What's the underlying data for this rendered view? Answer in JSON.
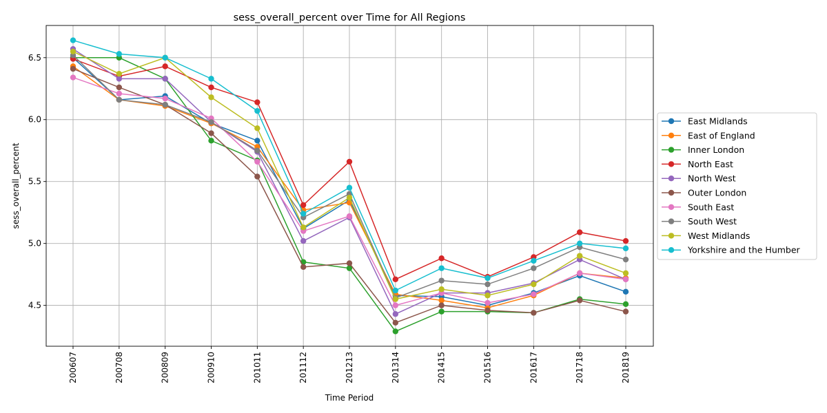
{
  "chart_data": {
    "type": "line",
    "title": "sess_overall_percent over Time for All Regions",
    "xlabel": "Time Period",
    "ylabel": "sess_overall_percent",
    "ylim": [
      4.17,
      6.76
    ],
    "yticks": [
      "4.5",
      "5.0",
      "5.5",
      "6.0",
      "6.5"
    ],
    "grid": true,
    "legend_position": "right",
    "categories": [
      "200607",
      "200708",
      "200809",
      "200910",
      "201011",
      "201112",
      "201213",
      "201314",
      "201415",
      "201516",
      "201617",
      "201718",
      "201819"
    ],
    "series": [
      {
        "name": "East Midlands",
        "color": "#1f77b4",
        "values": [
          6.5,
          6.16,
          6.19,
          5.97,
          5.83,
          5.12,
          5.35,
          4.58,
          4.57,
          4.5,
          4.6,
          4.74,
          4.61
        ]
      },
      {
        "name": "East of England",
        "color": "#ff7f0e",
        "values": [
          6.43,
          6.16,
          6.11,
          5.97,
          5.78,
          5.27,
          5.33,
          4.59,
          4.54,
          4.48,
          4.58,
          4.76,
          4.72
        ]
      },
      {
        "name": "Inner London",
        "color": "#2ca02c",
        "values": [
          6.5,
          6.5,
          6.33,
          5.83,
          5.67,
          4.85,
          4.8,
          4.29,
          4.45,
          4.45,
          4.44,
          4.55,
          4.51
        ]
      },
      {
        "name": "North East",
        "color": "#d62728",
        "values": [
          6.49,
          6.35,
          6.43,
          6.26,
          6.14,
          5.31,
          5.66,
          4.71,
          4.88,
          4.73,
          4.89,
          5.09,
          5.02
        ]
      },
      {
        "name": "North West",
        "color": "#9467bd",
        "values": [
          6.57,
          6.33,
          6.33,
          5.98,
          5.74,
          5.02,
          5.21,
          4.43,
          4.6,
          4.6,
          4.68,
          4.87,
          4.71
        ]
      },
      {
        "name": "Outer London",
        "color": "#8c564b",
        "values": [
          6.41,
          6.26,
          6.12,
          5.89,
          5.54,
          4.81,
          4.84,
          4.36,
          4.5,
          4.46,
          4.44,
          4.54,
          4.45
        ]
      },
      {
        "name": "South East",
        "color": "#e377c2",
        "values": [
          6.34,
          6.21,
          6.17,
          6.01,
          5.66,
          5.1,
          5.22,
          4.5,
          4.6,
          4.52,
          4.59,
          4.76,
          4.71
        ]
      },
      {
        "name": "South West",
        "color": "#7f7f7f",
        "values": [
          6.52,
          6.16,
          6.12,
          5.98,
          5.75,
          5.21,
          5.4,
          4.56,
          4.7,
          4.67,
          4.8,
          4.97,
          4.87
        ]
      },
      {
        "name": "West Midlands",
        "color": "#bcbd22",
        "values": [
          6.55,
          6.37,
          6.5,
          6.18,
          5.93,
          5.13,
          5.37,
          4.55,
          4.63,
          4.58,
          4.67,
          4.9,
          4.76
        ]
      },
      {
        "name": "Yorkshire and the Humber",
        "color": "#17becf",
        "values": [
          6.64,
          6.53,
          6.5,
          6.33,
          6.07,
          5.24,
          5.45,
          4.62,
          4.8,
          4.72,
          4.86,
          5.0,
          4.96
        ]
      }
    ]
  }
}
